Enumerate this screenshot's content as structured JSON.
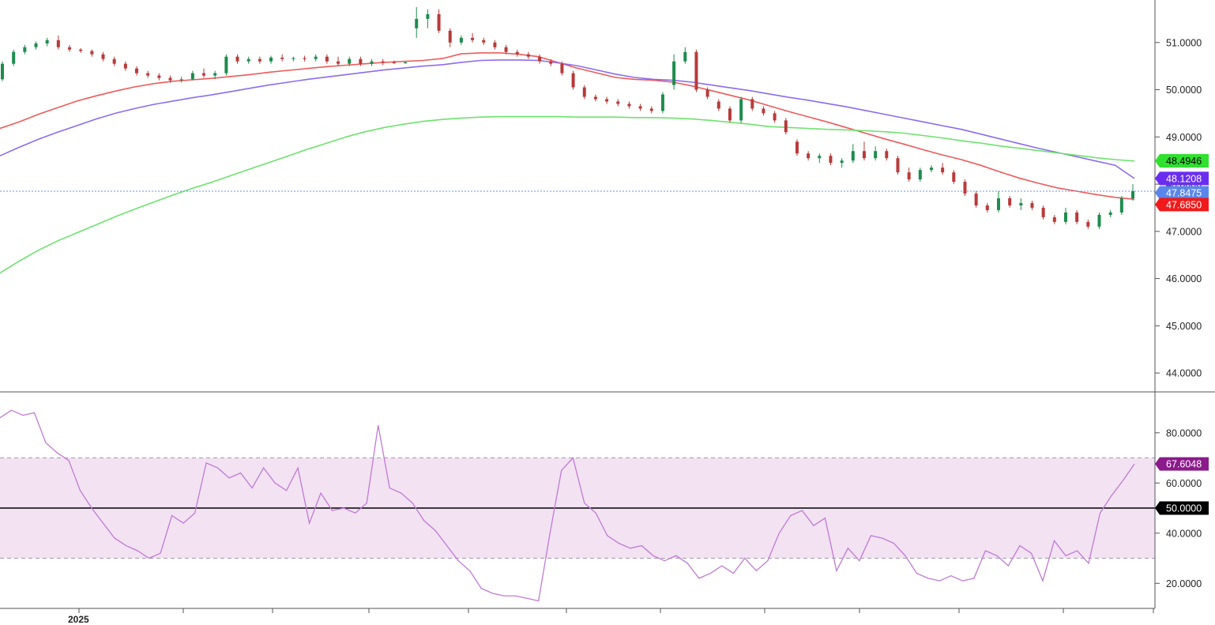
{
  "chart_data": [
    {
      "type": "candlestick",
      "panel": "price",
      "y_ticks": [
        "51.0000",
        "50.0000",
        "49.0000",
        "48.0000",
        "47.0000",
        "46.0000",
        "45.0000",
        "44.0000"
      ],
      "ylim": [
        43.6,
        51.9
      ],
      "x_labels": [
        "2025"
      ],
      "grid": false,
      "colors": {
        "up": "#1e8c4e",
        "down": "#b83a3a",
        "ma_fast": "#f05a5a",
        "ma_mid": "#8c6cf0",
        "ma_slow": "#6ee26e",
        "last_price_line": "#6a8ff0"
      },
      "series": [
        {
          "values": [
            49.18,
            49.32,
            49.48,
            49.62,
            49.76,
            49.87,
            49.97,
            50.06,
            50.13,
            50.18,
            50.21,
            50.24,
            50.28,
            50.32,
            50.37,
            50.41,
            50.45,
            50.49,
            50.52,
            50.55,
            50.58,
            50.6,
            50.62,
            50.66,
            50.76,
            50.78,
            50.78,
            50.75,
            50.7,
            50.58,
            50.46,
            50.36,
            50.26,
            50.22,
            50.2,
            50.16,
            50.08,
            49.98,
            49.88,
            49.78,
            49.66,
            49.54,
            49.43,
            49.32,
            49.2,
            49.08,
            48.96,
            48.85,
            48.73,
            48.62,
            48.52,
            48.4,
            48.26,
            48.13,
            48.02,
            47.92,
            47.85,
            47.78,
            47.72,
            47.68
          ]
        },
        {
          "values": [
            48.6,
            48.78,
            48.95,
            49.1,
            49.24,
            49.38,
            49.5,
            49.6,
            49.69,
            49.76,
            49.83,
            49.89,
            49.96,
            50.03,
            50.1,
            50.16,
            50.22,
            50.27,
            50.32,
            50.37,
            50.42,
            50.46,
            50.5,
            50.53,
            50.58,
            50.62,
            50.63,
            50.63,
            50.62,
            50.57,
            50.51,
            50.42,
            50.33,
            50.26,
            50.22,
            50.2,
            50.16,
            50.1,
            50.04,
            49.98,
            49.91,
            49.84,
            49.78,
            49.71,
            49.64,
            49.56,
            49.48,
            49.4,
            49.32,
            49.24,
            49.16,
            49.06,
            48.96,
            48.86,
            48.76,
            48.67,
            48.58,
            48.49,
            48.4,
            48.12
          ]
        },
        {
          "values": [
            46.12,
            46.37,
            46.6,
            46.8,
            46.97,
            47.14,
            47.31,
            47.47,
            47.62,
            47.77,
            47.91,
            48.04,
            48.18,
            48.32,
            48.46,
            48.6,
            48.74,
            48.87,
            49.0,
            49.11,
            49.2,
            49.27,
            49.33,
            49.37,
            49.4,
            49.42,
            49.43,
            49.43,
            49.43,
            49.43,
            49.42,
            49.42,
            49.42,
            49.41,
            49.41,
            49.4,
            49.38,
            49.35,
            49.31,
            49.27,
            49.22,
            49.2,
            49.18,
            49.16,
            49.15,
            49.13,
            49.11,
            49.08,
            49.03,
            48.98,
            48.92,
            48.87,
            48.81,
            48.76,
            48.71,
            48.66,
            48.61,
            48.56,
            48.52,
            48.49
          ]
        }
      ],
      "candles": [
        [
          50.22,
          50.6,
          50.18,
          50.55
        ],
        [
          50.55,
          50.85,
          50.5,
          50.8
        ],
        [
          50.8,
          50.95,
          50.75,
          50.9
        ],
        [
          50.9,
          51.02,
          50.85,
          50.98
        ],
        [
          50.98,
          51.1,
          50.92,
          51.05
        ],
        [
          51.05,
          51.15,
          50.85,
          50.9
        ],
        [
          50.9,
          50.95,
          50.8,
          50.85
        ],
        [
          50.85,
          50.88,
          50.78,
          50.82
        ],
        [
          50.82,
          50.85,
          50.7,
          50.75
        ],
        [
          50.75,
          50.8,
          50.6,
          50.65
        ],
        [
          50.65,
          50.7,
          50.5,
          50.55
        ],
        [
          50.55,
          50.6,
          50.4,
          50.45
        ],
        [
          50.45,
          50.5,
          50.3,
          50.35
        ],
        [
          50.35,
          50.4,
          50.25,
          50.3
        ],
        [
          50.3,
          50.35,
          50.2,
          50.25
        ],
        [
          50.25,
          50.3,
          50.15,
          50.2
        ],
        [
          50.2,
          50.28,
          50.15,
          50.22
        ],
        [
          50.22,
          50.4,
          50.2,
          50.35
        ],
        [
          50.35,
          50.45,
          50.25,
          50.3
        ],
        [
          50.3,
          50.4,
          50.22,
          50.35
        ],
        [
          50.35,
          50.75,
          50.3,
          50.7
        ],
        [
          50.7,
          50.75,
          50.55,
          50.6
        ],
        [
          50.6,
          50.7,
          50.55,
          50.65
        ],
        [
          50.65,
          50.7,
          50.55,
          50.6
        ],
        [
          50.6,
          50.72,
          50.55,
          50.68
        ],
        [
          50.68,
          50.75,
          50.6,
          50.65
        ],
        [
          50.65,
          50.7,
          50.6,
          50.67
        ],
        [
          50.67,
          50.72,
          50.6,
          50.65
        ],
        [
          50.65,
          50.75,
          50.6,
          50.7
        ],
        [
          50.7,
          50.75,
          50.55,
          50.6
        ],
        [
          50.6,
          50.7,
          50.5,
          50.55
        ],
        [
          50.55,
          50.7,
          50.5,
          50.65
        ],
        [
          50.65,
          50.7,
          50.5,
          50.55
        ],
        [
          50.55,
          50.65,
          50.5,
          50.6
        ],
        [
          50.6,
          50.65,
          50.52,
          50.58
        ],
        [
          50.58,
          50.62,
          50.55,
          50.57
        ],
        [
          50.57,
          50.6,
          50.55,
          50.58
        ],
        [
          51.3,
          51.75,
          51.1,
          51.5
        ],
        [
          51.5,
          51.7,
          51.3,
          51.6
        ],
        [
          51.6,
          51.7,
          51.2,
          51.25
        ],
        [
          51.25,
          51.3,
          50.9,
          51.0
        ],
        [
          51.0,
          51.15,
          50.95,
          51.1
        ],
        [
          51.1,
          51.2,
          51.0,
          51.05
        ],
        [
          51.05,
          51.1,
          50.95,
          51.0
        ],
        [
          51.0,
          51.05,
          50.85,
          50.9
        ],
        [
          50.9,
          50.95,
          50.75,
          50.8
        ],
        [
          50.8,
          50.85,
          50.7,
          50.75
        ],
        [
          50.75,
          50.8,
          50.65,
          50.7
        ],
        [
          50.7,
          50.75,
          50.55,
          50.6
        ],
        [
          50.6,
          50.65,
          50.5,
          50.55
        ],
        [
          50.55,
          50.6,
          50.3,
          50.35
        ],
        [
          50.35,
          50.4,
          50.0,
          50.05
        ],
        [
          50.05,
          50.1,
          49.8,
          49.85
        ],
        [
          49.85,
          49.9,
          49.75,
          49.8
        ],
        [
          49.8,
          49.85,
          49.7,
          49.75
        ],
        [
          49.75,
          49.8,
          49.65,
          49.7
        ],
        [
          49.7,
          49.75,
          49.6,
          49.65
        ],
        [
          49.65,
          49.7,
          49.55,
          49.6
        ],
        [
          49.6,
          49.65,
          49.5,
          49.55
        ],
        [
          49.55,
          49.95,
          49.5,
          49.9
        ],
        [
          50.1,
          50.75,
          50.0,
          50.6
        ],
        [
          50.6,
          50.9,
          50.55,
          50.8
        ],
        [
          50.8,
          50.85,
          49.95,
          50.0
        ],
        [
          50.0,
          50.05,
          49.8,
          49.85
        ],
        [
          49.75,
          49.8,
          49.55,
          49.6
        ],
        [
          49.6,
          49.65,
          49.3,
          49.35
        ],
        [
          49.35,
          49.85,
          49.3,
          49.8
        ],
        [
          49.8,
          49.85,
          49.55,
          49.6
        ],
        [
          49.6,
          49.65,
          49.45,
          49.5
        ],
        [
          49.5,
          49.55,
          49.3,
          49.35
        ],
        [
          49.35,
          49.4,
          49.05,
          49.1
        ],
        [
          48.9,
          48.95,
          48.6,
          48.65
        ],
        [
          48.65,
          48.7,
          48.5,
          48.55
        ],
        [
          48.55,
          48.65,
          48.45,
          48.6
        ],
        [
          48.6,
          48.65,
          48.4,
          48.45
        ],
        [
          48.45,
          48.55,
          48.35,
          48.5
        ],
        [
          48.5,
          48.85,
          48.45,
          48.7
        ],
        [
          48.7,
          48.9,
          48.5,
          48.55
        ],
        [
          48.55,
          48.8,
          48.5,
          48.7
        ],
        [
          48.7,
          48.75,
          48.5,
          48.55
        ],
        [
          48.55,
          48.6,
          48.2,
          48.25
        ],
        [
          48.25,
          48.35,
          48.05,
          48.1
        ],
        [
          48.1,
          48.35,
          48.05,
          48.3
        ],
        [
          48.3,
          48.4,
          48.25,
          48.35
        ],
        [
          48.35,
          48.45,
          48.2,
          48.25
        ],
        [
          48.25,
          48.3,
          48.0,
          48.05
        ],
        [
          48.05,
          48.1,
          47.75,
          47.8
        ],
        [
          47.8,
          47.85,
          47.5,
          47.55
        ],
        [
          47.55,
          47.6,
          47.4,
          47.45
        ],
        [
          47.45,
          47.85,
          47.4,
          47.7
        ],
        [
          47.7,
          47.75,
          47.5,
          47.55
        ],
        [
          47.55,
          47.7,
          47.45,
          47.6
        ],
        [
          47.6,
          47.65,
          47.45,
          47.5
        ],
        [
          47.5,
          47.55,
          47.25,
          47.3
        ],
        [
          47.3,
          47.35,
          47.15,
          47.2
        ],
        [
          47.2,
          47.5,
          47.15,
          47.4
        ],
        [
          47.4,
          47.45,
          47.15,
          47.2
        ],
        [
          47.2,
          47.25,
          47.05,
          47.1
        ],
        [
          47.1,
          47.4,
          47.05,
          47.35
        ],
        [
          47.35,
          47.45,
          47.3,
          47.4
        ],
        [
          47.4,
          47.75,
          47.35,
          47.7
        ],
        [
          47.7,
          48.0,
          47.65,
          47.85
        ]
      ]
    },
    {
      "type": "line",
      "panel": "rsi",
      "y_ticks": [
        "80.0000",
        "60.0000",
        "40.0000",
        "20.0000"
      ],
      "ylim": [
        10,
        96
      ],
      "band": [
        30,
        70
      ],
      "midline": 50,
      "colors": {
        "line": "#c07ad6",
        "band": "#f2e2f2"
      },
      "series": [
        {
          "values": [
            86,
            89,
            87,
            88,
            76,
            72,
            69,
            57,
            50,
            44,
            38,
            35,
            33,
            30,
            32,
            47,
            44,
            48,
            68,
            66,
            62,
            64,
            58,
            66,
            60,
            57,
            66,
            44,
            56,
            49,
            50,
            48,
            52,
            83,
            58,
            56,
            52,
            45,
            41,
            35,
            29,
            25,
            18,
            16,
            15,
            15,
            14,
            13,
            40,
            65,
            70,
            52,
            48,
            39,
            36,
            34,
            35,
            31,
            29,
            31,
            28,
            22,
            24,
            27,
            24,
            30,
            25,
            29,
            40,
            47,
            49,
            43,
            46,
            25,
            34,
            29,
            39,
            38,
            36,
            31,
            24,
            22,
            21,
            23,
            21,
            22,
            33,
            31,
            27,
            35,
            32,
            21,
            37,
            31,
            33,
            28,
            48,
            55,
            61,
            67.6
          ]
        }
      ]
    }
  ],
  "badges": {
    "ma_slow": {
      "label": "48.4946",
      "color": "#2fe02f"
    },
    "ma_mid": {
      "label": "48.1208",
      "color": "#6a2df0"
    },
    "last_price": {
      "label": "47.8475",
      "color": "#5a86ec"
    },
    "ma_fast": {
      "label": "47.6850",
      "color": "#f01a1a"
    },
    "rsi_value": {
      "label": "67.6048",
      "color": "#8b1a8b"
    },
    "rsi_mid": {
      "label": "50.0000",
      "color": "#000000"
    }
  }
}
